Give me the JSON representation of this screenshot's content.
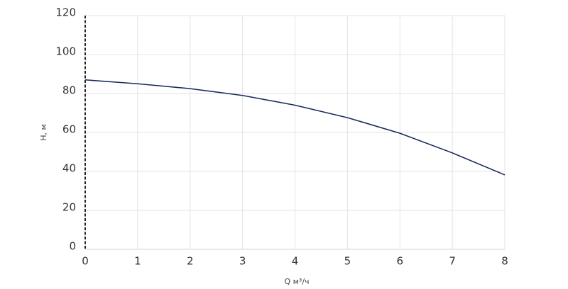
{
  "chart_data": {
    "type": "line",
    "x_label": "Q м³/ч",
    "y_label": "H, м",
    "x": [
      0,
      1,
      2,
      3,
      4,
      5,
      6,
      7,
      8
    ],
    "series": [
      {
        "color": "#1b2a5c",
        "values": [
          87,
          85,
          82.5,
          79,
          74,
          67.6,
          59.6,
          49.5,
          38.2
        ]
      }
    ],
    "xlim": [
      0,
      8
    ],
    "xticks": [
      0,
      1,
      2,
      3,
      4,
      5,
      6,
      7,
      8
    ],
    "ylim": [
      0,
      120
    ],
    "yticks": [
      0,
      20,
      40,
      60,
      80,
      100,
      120
    ],
    "grid": true
  }
}
